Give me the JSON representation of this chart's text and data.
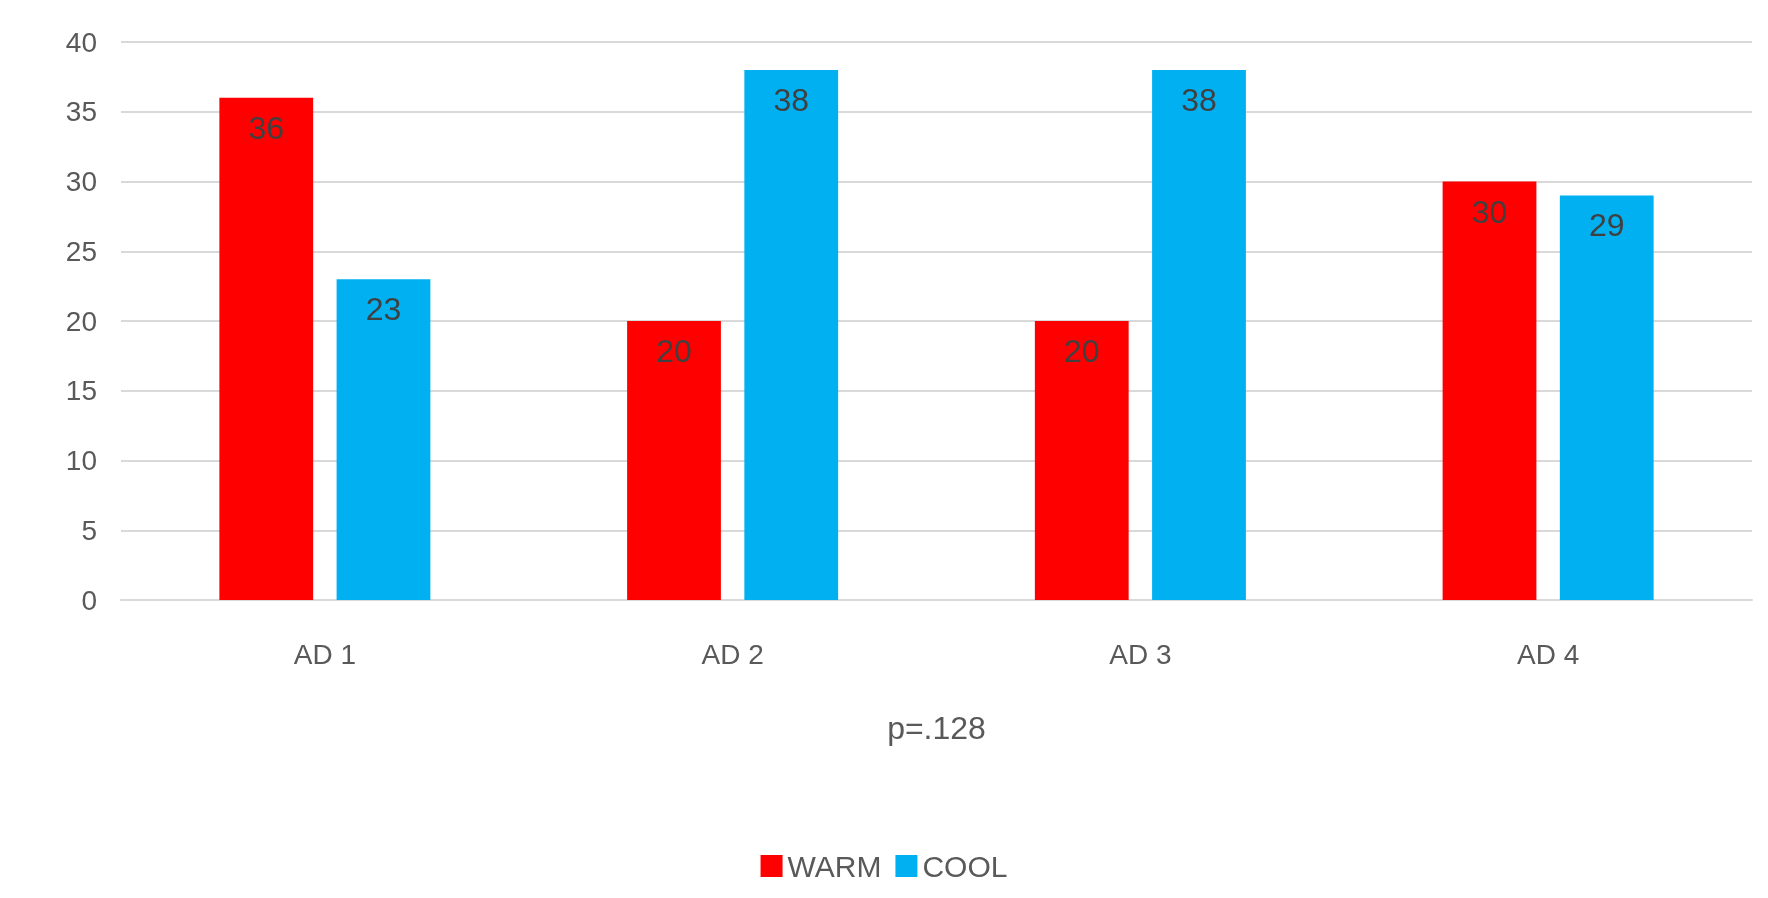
{
  "chart_data": {
    "type": "bar",
    "categories": [
      "AD 1",
      "AD 2",
      "AD 3",
      "AD 4"
    ],
    "xlabel": "p=.128",
    "series": [
      {
        "name": "WARM",
        "color": "#ff0000",
        "values": [
          36,
          20,
          20,
          30
        ]
      },
      {
        "name": "COOL",
        "color": "#00b0f0",
        "values": [
          23,
          38,
          38,
          29
        ]
      }
    ],
    "ylim": [
      0,
      40
    ],
    "yticks": [
      0,
      5,
      10,
      15,
      20,
      25,
      30,
      35,
      40
    ],
    "grid": "y",
    "legend": "bottom",
    "data_labels": true
  }
}
